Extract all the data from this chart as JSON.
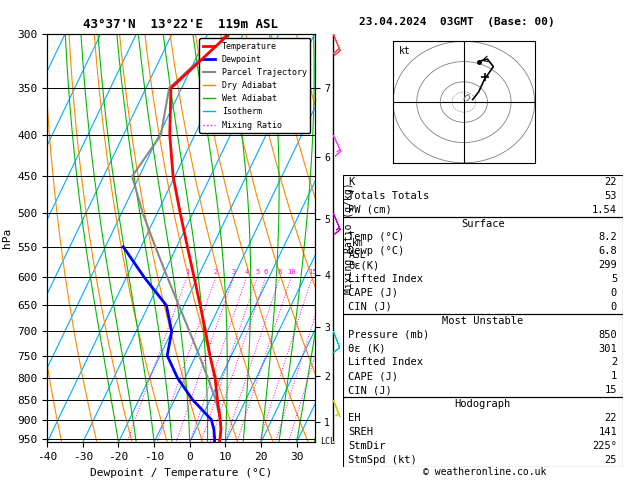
{
  "title_left": "43°37'N  13°22'E  119m ASL",
  "title_right": "23.04.2024  03GMT  (Base: 00)",
  "xlabel": "Dewpoint / Temperature (°C)",
  "ylabel_left": "hPa",
  "pressure_major": [
    300,
    350,
    400,
    450,
    500,
    550,
    600,
    650,
    700,
    750,
    800,
    850,
    900,
    950
  ],
  "temp_ticks": [
    -40,
    -30,
    -20,
    -10,
    0,
    10,
    20,
    30
  ],
  "km_ticks": [
    1,
    2,
    3,
    4,
    5,
    6,
    7
  ],
  "km_pressures": [
    907,
    795,
    692,
    596,
    508,
    426,
    350
  ],
  "lcl_pressure": 957,
  "temperature_profile": {
    "pressure": [
      957,
      950,
      925,
      900,
      850,
      800,
      750,
      700,
      650,
      600,
      550,
      500,
      450,
      400,
      350,
      300
    ],
    "temp": [
      8.2,
      8.0,
      7.0,
      5.5,
      2.0,
      -1.5,
      -6.0,
      -10.5,
      -15.5,
      -21.0,
      -27.0,
      -33.5,
      -40.5,
      -47.0,
      -53.0,
      -44.0
    ]
  },
  "dewpoint_profile": {
    "pressure": [
      957,
      950,
      925,
      900,
      850,
      800,
      750,
      700,
      650,
      600,
      550
    ],
    "dewp": [
      6.8,
      6.5,
      5.0,
      3.0,
      -5.0,
      -12.0,
      -18.0,
      -20.0,
      -25.0,
      -35.0,
      -45.0
    ]
  },
  "parcel_profile": {
    "pressure": [
      957,
      925,
      900,
      850,
      800,
      750,
      700,
      650,
      600,
      550,
      500,
      450,
      400,
      350,
      300
    ],
    "temp": [
      8.2,
      7.0,
      5.5,
      1.5,
      -3.5,
      -9.0,
      -15.0,
      -21.5,
      -28.5,
      -36.0,
      -44.0,
      -52.0,
      -49.5,
      -53.5,
      -44.5
    ]
  },
  "stats": {
    "K": 22,
    "Totals_Totals": 53,
    "PW_cm": 1.54,
    "Surf_Temp": 8.2,
    "Surf_Dewp": 6.8,
    "Surf_theta_e": 299,
    "Surf_LI": 5,
    "Surf_CAPE": 0,
    "Surf_CIN": 0,
    "MU_Pressure": 850,
    "MU_theta_e": 301,
    "MU_LI": 2,
    "MU_CAPE": 1,
    "MU_CIN": 15,
    "EH": 22,
    "SREH": 141,
    "StmDir": "225°",
    "StmSpd": 25
  },
  "colors": {
    "temperature": "#ff0000",
    "dewpoint": "#0000ff",
    "parcel": "#888888",
    "dry_adiabat": "#ff8800",
    "wet_adiabat": "#00bb00",
    "isotherm": "#00aaff",
    "mixing_ratio": "#ff00ff",
    "background": "#ffffff",
    "grid": "#000000"
  },
  "hodo_u": [
    1.5,
    2.5,
    3.5,
    5.0,
    4.0,
    2.5
  ],
  "hodo_v": [
    0.5,
    2.0,
    4.5,
    7.0,
    8.5,
    8.0
  ],
  "hodo_storm_u": 3.5,
  "hodo_storm_v": 5.0,
  "wind_pressures": [
    957,
    850,
    700,
    500,
    400,
    300
  ],
  "wind_u": [
    -1,
    -2,
    -3,
    -5,
    -7,
    -7
  ],
  "wind_v": [
    3,
    5,
    8,
    12,
    15,
    17
  ],
  "wind_colors": [
    "#cccc00",
    "#cccc00",
    "#00cccc",
    "#cc00cc",
    "#ff44ff",
    "#ff4444"
  ]
}
